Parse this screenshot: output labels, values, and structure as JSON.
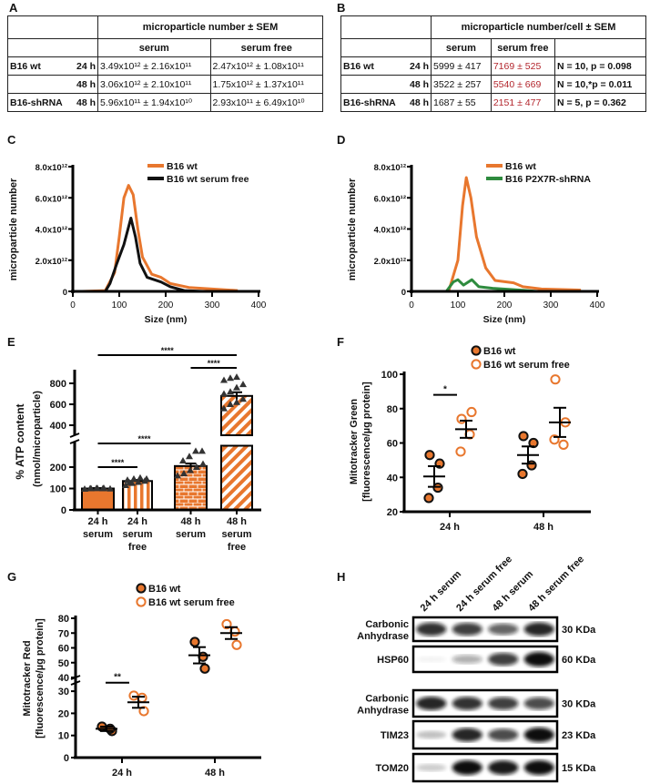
{
  "panel_labels": [
    "A",
    "B",
    "C",
    "D",
    "E",
    "F",
    "G",
    "H"
  ],
  "table_a": {
    "header": "microparticle number ± SEM",
    "columns": [
      "serum",
      "serum free"
    ],
    "rows": [
      {
        "group": "B16 wt",
        "time": "24 h",
        "values": [
          "3.49x10¹² ± 2.16x10¹¹",
          "2.47x10¹² ± 1.08x10¹¹"
        ]
      },
      {
        "group": "",
        "time": "48 h",
        "values": [
          "3.06x10¹² ± 2.10x10¹¹",
          "1.75x10¹² ± 1.37x10¹¹"
        ]
      },
      {
        "group": "B16-shRNA",
        "time": "48 h",
        "values": [
          "5.96x10¹¹ ± 1.94x10¹⁰",
          "2.93x10¹¹ ± 6.49x10¹⁰"
        ]
      }
    ]
  },
  "table_b": {
    "header": "microparticle number/cell ± SEM",
    "columns": [
      "serum",
      "serum free"
    ],
    "rows": [
      {
        "group": "B16 wt",
        "time": "24 h",
        "values": [
          "5999 ± 417",
          "7169 ± 525"
        ],
        "stat": "N = 10, p = 0.098"
      },
      {
        "group": "",
        "time": "48 h",
        "values": [
          "3522 ± 257",
          "5540 ± 669"
        ],
        "stat": "N = 10,*p = 0.011"
      },
      {
        "group": "B16-shRNA",
        "time": "48 h",
        "values": [
          "1687 ± 55",
          "2151 ± 477"
        ],
        "stat": "N = 5,   p = 0.362"
      }
    ]
  },
  "colors": {
    "orange": "#e8772e",
    "black": "#111111",
    "green": "#2e8b3e",
    "red_text": "#b3262d"
  },
  "chart_data": [
    {
      "panel": "C",
      "type": "line",
      "xlabel": "Size (nm)",
      "ylabel": "microparticle number",
      "xlim": [
        0,
        400
      ],
      "ylim": [
        0,
        8000000000000.0
      ],
      "xticks": [
        "0",
        "100",
        "200",
        "300",
        "400"
      ],
      "yticks": [
        "0",
        "2.0x10¹²",
        "4.0x10¹²",
        "6.0x10¹²",
        "8.0x10¹²"
      ],
      "legend_position": "top-right",
      "series": [
        {
          "name": "B16 wt",
          "color": "#e8772e",
          "unit": 1000000000000.0,
          "x": [
            20,
            70,
            90,
            100,
            110,
            120,
            130,
            140,
            150,
            170,
            190,
            210,
            250,
            300,
            355
          ],
          "y": [
            0,
            0.05,
            1.2,
            3.5,
            6.0,
            6.8,
            6.2,
            4.0,
            2.2,
            1.1,
            0.9,
            0.5,
            0.25,
            0.15,
            0.05
          ]
        },
        {
          "name": "B16 wt serum free",
          "color": "#111111",
          "unit": 1000000000000.0,
          "x": [
            20,
            70,
            80,
            95,
            110,
            125,
            135,
            145,
            160,
            190,
            210,
            240,
            280
          ],
          "y": [
            0,
            0,
            0.5,
            1.8,
            3.0,
            4.7,
            3.5,
            1.8,
            0.9,
            0.6,
            0.3,
            0.05,
            0
          ]
        }
      ]
    },
    {
      "panel": "D",
      "type": "line",
      "xlabel": "Size (nm)",
      "ylabel": "microparticle number",
      "xlim": [
        0,
        400
      ],
      "ylim": [
        0,
        8000000000000.0
      ],
      "xticks": [
        "0",
        "100",
        "200",
        "300",
        "400"
      ],
      "yticks": [
        "0",
        "2.0x10¹²",
        "4.0x10¹²",
        "6.0x10¹²",
        "8.0x10¹²"
      ],
      "legend_position": "top-right",
      "series": [
        {
          "name": "B16 wt",
          "color": "#e8772e",
          "unit": 1000000000000.0,
          "x": [
            20,
            80,
            100,
            110,
            118,
            128,
            140,
            160,
            180,
            220,
            240,
            280,
            365
          ],
          "y": [
            0,
            0,
            2.0,
            5.5,
            7.3,
            6.0,
            3.5,
            1.5,
            0.7,
            0.55,
            0.3,
            0.15,
            0.08
          ]
        },
        {
          "name": "B16 P2X7R-shRNA",
          "color": "#2e8b3e",
          "unit": 1000000000000.0,
          "x": [
            75,
            90,
            100,
            112,
            130,
            145,
            175,
            250,
            270
          ],
          "y": [
            0,
            0.6,
            0.75,
            0.4,
            0.75,
            0.3,
            0.2,
            0.05,
            0
          ]
        }
      ]
    },
    {
      "panel": "E",
      "type": "bar",
      "ylabel": "% ATP content",
      "ylabel2": "(nmol/microparticle)",
      "ylim": [
        0,
        900
      ],
      "axis_break": [
        300,
        350
      ],
      "yticks": [
        "0",
        "100",
        "200",
        "400",
        "600",
        "800"
      ],
      "categories": [
        [
          "24 h",
          "serum"
        ],
        [
          "24 h",
          "serum",
          "free"
        ],
        [
          "48 h",
          "serum"
        ],
        [
          "48 h",
          "serum",
          "free"
        ]
      ],
      "values": [
        100,
        135,
        205,
        680
      ],
      "sem": [
        2,
        5,
        12,
        35
      ],
      "points": [
        [
          98,
          100,
          101,
          102,
          99,
          100,
          101,
          100
        ],
        [
          115,
          125,
          130,
          135,
          140,
          145,
          150,
          145,
          128
        ],
        [
          160,
          170,
          185,
          200,
          215,
          230,
          250,
          275,
          275
        ],
        [
          560,
          600,
          620,
          650,
          700,
          720,
          760,
          790,
          830,
          850,
          860
        ]
      ],
      "significance": [
        {
          "from": 0,
          "to": 3,
          "label": "****"
        },
        {
          "from": 2,
          "to": 3,
          "label": "****"
        },
        {
          "from": 0,
          "to": 2,
          "label": "****"
        },
        {
          "from": 0,
          "to": 1,
          "label": "****"
        }
      ]
    },
    {
      "panel": "F",
      "type": "scatter",
      "ylabel": "Mitotracker Green",
      "ylabel2": "[fluorescence/µg protein]",
      "ylim": [
        20,
        100
      ],
      "yticks": [
        "20",
        "40",
        "60",
        "80",
        "100"
      ],
      "categories": [
        "24 h",
        "48 h"
      ],
      "legend_position": "top",
      "series": [
        {
          "name": "B16 wt",
          "filled": true,
          "points": [
            [
              53,
              48,
              34,
              28
            ],
            [
              64,
              60,
              47,
              42
            ]
          ],
          "mean": [
            40.5,
            53
          ],
          "sem": [
            6,
            5
          ]
        },
        {
          "name": "B16 wt serum free",
          "filled": false,
          "points": [
            [
              74,
              78,
              65,
              55
            ],
            [
              97,
              72,
              59,
              62
            ]
          ],
          "mean": [
            68,
            72
          ],
          "sem": [
            5,
            8.5
          ]
        }
      ],
      "significance": [
        {
          "category": 0,
          "label": "*",
          "y": 88
        }
      ]
    },
    {
      "panel": "G",
      "type": "scatter",
      "ylabel": "Mitotracker Red",
      "ylabel2": "[fluorescence/µg protein]",
      "ylim": [
        0,
        80
      ],
      "axis_break": [
        35,
        38
      ],
      "yticks": [
        "0",
        "10",
        "20",
        "30",
        "40",
        "50",
        "60",
        "70",
        "80"
      ],
      "categories": [
        "24 h",
        "48 h"
      ],
      "legend_position": "top",
      "series": [
        {
          "name": "B16 wt",
          "filled": true,
          "points": [
            [
              14,
              12,
              13
            ],
            [
              64,
              46,
              54
            ]
          ],
          "mean": [
            13,
            55
          ],
          "sem": [
            1,
            5.5
          ]
        },
        {
          "name": "B16 wt serum free",
          "filled": false,
          "points": [
            [
              28,
              21,
              27
            ],
            [
              76,
              62,
              71
            ]
          ],
          "mean": [
            25,
            70
          ],
          "sem": [
            2.5,
            4
          ]
        }
      ],
      "significance": [
        {
          "category": 0,
          "label": "**",
          "y": 36.5
        }
      ]
    }
  ],
  "blot": {
    "lanes": [
      "24 h serum",
      "24 h serum free",
      "48 h serum",
      "48 h serum free"
    ],
    "rows": [
      {
        "label": [
          "Carbonic",
          "Anhydrase"
        ],
        "kda": "30 KDa",
        "intensity": [
          0.85,
          0.8,
          0.65,
          0.9
        ]
      },
      {
        "label": [
          "HSP60"
        ],
        "kda": "60 KDa",
        "intensity": [
          0.05,
          0.35,
          0.8,
          1.0
        ]
      },
      {
        "label": [
          "Carbonic",
          "Anhydrase"
        ],
        "kda": "30 KDa",
        "intensity": [
          0.9,
          0.85,
          0.8,
          0.75
        ]
      },
      {
        "label": [
          "TIM23"
        ],
        "kda": "23 KDa",
        "intensity": [
          0.25,
          0.9,
          0.75,
          1.0
        ]
      },
      {
        "label": [
          "TOM20"
        ],
        "kda": "15 KDa",
        "intensity": [
          0.2,
          1.0,
          0.95,
          1.0
        ]
      }
    ]
  }
}
